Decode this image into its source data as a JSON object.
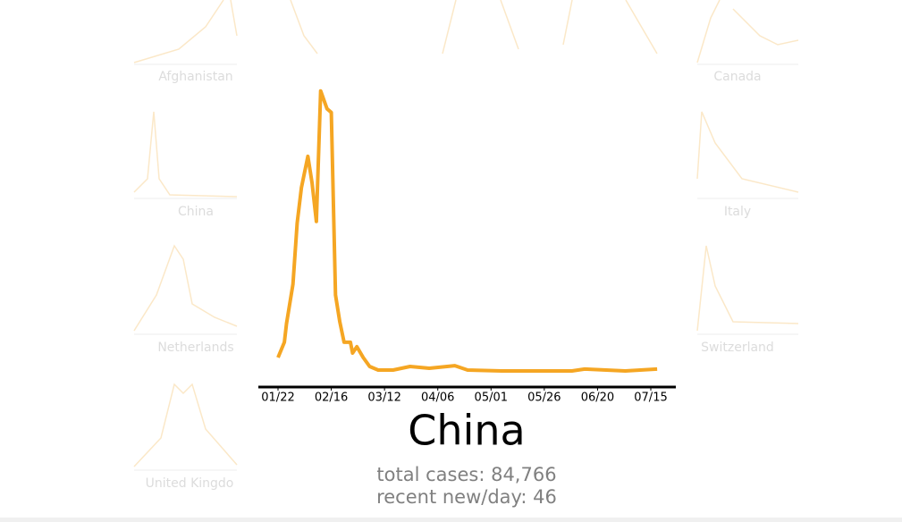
{
  "panels": [
    "Afghanistan",
    "Canada",
    "China",
    "Italy",
    "Netherlands",
    "Switzerland",
    "United Kingdo"
  ],
  "chart_data": {
    "type": "line",
    "title": "China",
    "x": [
      "01/22",
      "01/25",
      "01/26",
      "01/29",
      "01/31",
      "02/02",
      "02/05",
      "02/07",
      "02/09",
      "02/11",
      "02/14",
      "02/16",
      "02/18",
      "02/20",
      "02/22",
      "02/25",
      "02/26",
      "02/28",
      "03/02",
      "03/05",
      "03/09",
      "03/16",
      "03/24",
      "04/02",
      "04/14",
      "04/20",
      "05/06",
      "06/08",
      "06/14",
      "07/03",
      "07/18"
    ],
    "values": [
      750,
      1500,
      2420,
      4360,
      7360,
      9120,
      10660,
      9340,
      7450,
      13880,
      13000,
      12820,
      3830,
      2510,
      1500,
      1500,
      970,
      1280,
      750,
      310,
      130,
      130,
      310,
      220,
      350,
      130,
      90,
      90,
      180,
      90,
      180
    ],
    "color": "#f5a623",
    "ylim": [
      0,
      14000
    ],
    "xticks": [
      "01/22",
      "02/16",
      "03/12",
      "04/06",
      "05/01",
      "05/26",
      "06/20",
      "07/15"
    ],
    "subtitle_lines": [
      "total cases: 84,766",
      "recent new/day: 46"
    ]
  }
}
